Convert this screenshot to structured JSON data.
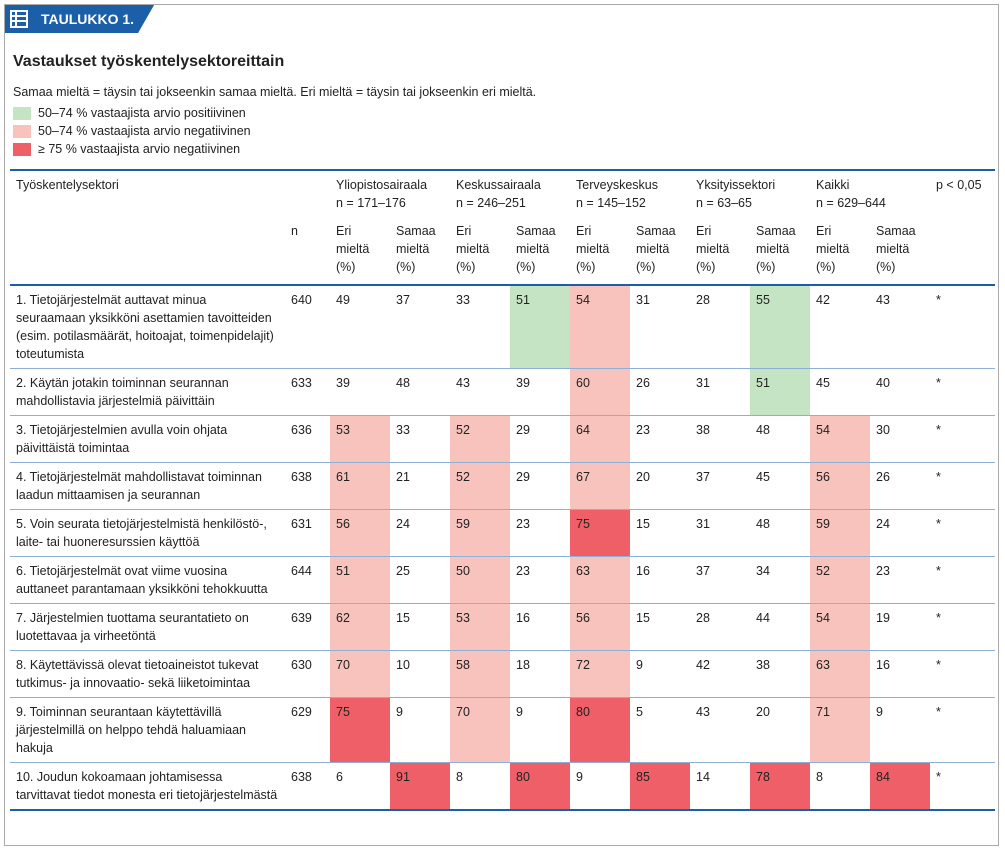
{
  "header": {
    "badge": "TAULUKKO 1.",
    "title": "Vastaukset työskentelysektoreittain",
    "note": "Samaa mieltä = täysin tai jokseenkin samaa mieltä. Eri mieltä = täysin tai jokseenkin eri mieltä."
  },
  "legend": [
    {
      "label": "50–74 % vastaajista arvio positiivinen",
      "color": "#c5e4c3"
    },
    {
      "label": "50–74 % vastaajista arvio negatiivinen",
      "color": "#f8c3bc"
    },
    {
      "label": "≥ 75 % vastaajista arvio negatiivinen",
      "color": "#ef5f68"
    }
  ],
  "table": {
    "first": "Työskentelysektori",
    "n": "n",
    "p": "p < 0,05",
    "groups": [
      {
        "name": "Yliopistosairaala",
        "n": "n = 171–176"
      },
      {
        "name": "Keskussairaala",
        "n": "n = 246–251"
      },
      {
        "name": "Terveyskeskus",
        "n": "n = 145–152"
      },
      {
        "name": "Yksityissektori",
        "n": "n = 63–65"
      },
      {
        "name": "Kaikki",
        "n": "n = 629–644"
      }
    ],
    "sub": [
      "Eri\nmieltä\n(%)",
      "Samaa\nmieltä\n(%)"
    ],
    "rows": [
      {
        "label": "1. Tietojärjestelmät auttavat minua seuraamaan yksikköni asettamien tavoitteiden (esim. potilasmäärät, hoitoajat, toimenpidelajit) toteutumista",
        "n": 640,
        "values": [
          49,
          37,
          33,
          51,
          54,
          31,
          28,
          55,
          42,
          43
        ],
        "shade": [
          null,
          null,
          null,
          0,
          1,
          null,
          null,
          0,
          null,
          null
        ],
        "p": "*"
      },
      {
        "label": "2. Käytän jotakin toiminnan seurannan mahdollistavia järjestelmiä päivittäin",
        "n": 633,
        "values": [
          39,
          48,
          43,
          39,
          60,
          26,
          31,
          51,
          45,
          40
        ],
        "shade": [
          null,
          null,
          null,
          null,
          1,
          null,
          null,
          0,
          null,
          null
        ],
        "p": "*"
      },
      {
        "label": "3. Tietojärjestelmien avulla voin ohjata päivittäistä toimintaa",
        "n": 636,
        "values": [
          53,
          33,
          52,
          29,
          64,
          23,
          38,
          48,
          54,
          30
        ],
        "shade": [
          1,
          null,
          1,
          null,
          1,
          null,
          null,
          null,
          1,
          null
        ],
        "p": "*"
      },
      {
        "label": "4. Tietojärjestelmät mahdollistavat toiminnan laadun mittaamisen ja seurannan",
        "n": 638,
        "values": [
          61,
          21,
          52,
          29,
          67,
          20,
          37,
          45,
          56,
          26
        ],
        "shade": [
          1,
          null,
          1,
          null,
          1,
          null,
          null,
          null,
          1,
          null
        ],
        "p": "*"
      },
      {
        "label": "5. Voin seurata tietojärjestelmistä henkilöstö-, laite- tai huoneresurssien käyttöä",
        "n": 631,
        "values": [
          56,
          24,
          59,
          23,
          75,
          15,
          31,
          48,
          59,
          24
        ],
        "shade": [
          1,
          null,
          1,
          null,
          2,
          null,
          null,
          null,
          1,
          null
        ],
        "p": "*"
      },
      {
        "label": "6. Tietojärjestelmät ovat viime vuosina auttaneet parantamaan yksikköni tehokkuutta",
        "n": 644,
        "values": [
          51,
          25,
          50,
          23,
          63,
          16,
          37,
          34,
          52,
          23
        ],
        "shade": [
          1,
          null,
          1,
          null,
          1,
          null,
          null,
          null,
          1,
          null
        ],
        "p": "*"
      },
      {
        "label": "7. Järjestelmien tuottama seurantatieto on luotettavaa ja virheetöntä",
        "n": 639,
        "values": [
          62,
          15,
          53,
          16,
          56,
          15,
          28,
          44,
          54,
          19
        ],
        "shade": [
          1,
          null,
          1,
          null,
          1,
          null,
          null,
          null,
          1,
          null
        ],
        "p": "*"
      },
      {
        "label": "8. Käytettävissä olevat tietoaineistot tukevat tutkimus- ja innovaatio- sekä liiketoimintaa",
        "n": 630,
        "values": [
          70,
          10,
          58,
          18,
          72,
          9,
          42,
          38,
          63,
          16
        ],
        "shade": [
          1,
          null,
          1,
          null,
          1,
          null,
          null,
          null,
          1,
          null
        ],
        "p": "*"
      },
      {
        "label": "9. Toiminnan seurantaan käytettävillä järjestelmillä on helppo tehdä haluamiaan hakuja",
        "n": 629,
        "values": [
          75,
          9,
          70,
          9,
          80,
          5,
          43,
          20,
          71,
          9
        ],
        "shade": [
          2,
          null,
          1,
          null,
          2,
          null,
          null,
          null,
          1,
          null
        ],
        "p": "*"
      },
      {
        "label": "10. Joudun kokoamaan johtamisessa tarvittavat tiedot monesta eri tietojärjestelmästä",
        "n": 638,
        "values": [
          6,
          91,
          8,
          80,
          9,
          85,
          14,
          78,
          8,
          84
        ],
        "shade": [
          null,
          2,
          null,
          2,
          null,
          2,
          null,
          2,
          null,
          2
        ],
        "p": "*"
      }
    ]
  }
}
